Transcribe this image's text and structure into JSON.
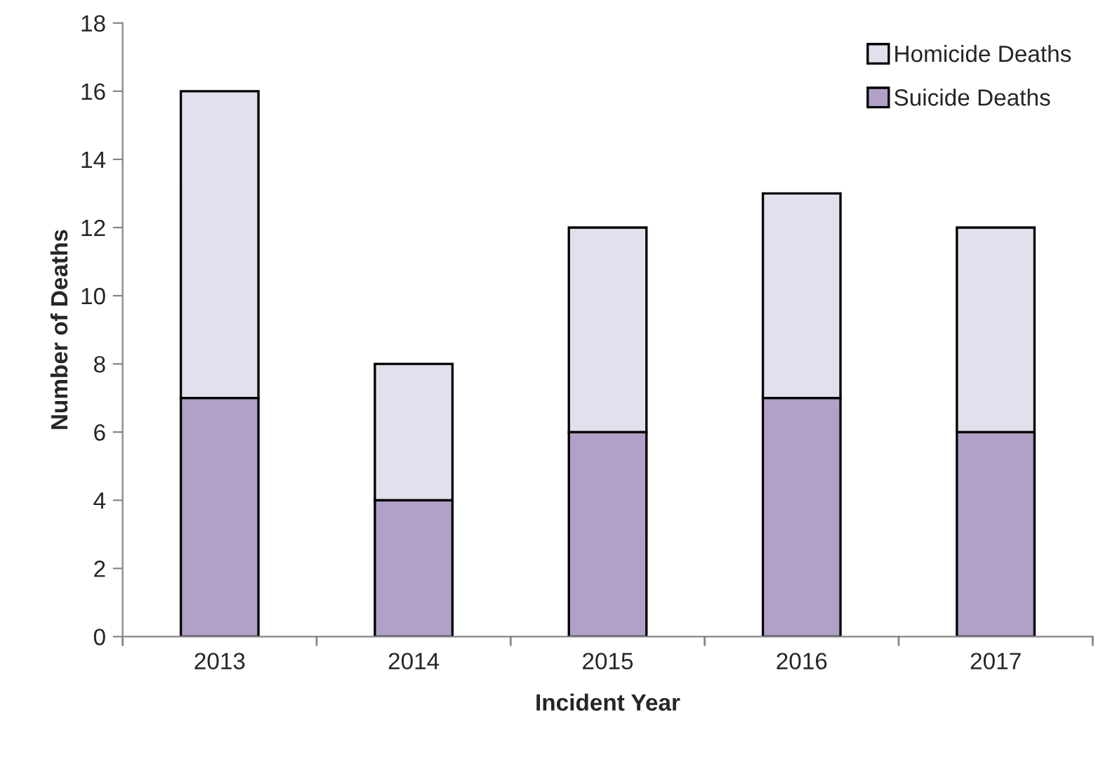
{
  "chart_data": {
    "type": "bar",
    "stacked": true,
    "xlabel": "Incident Year",
    "ylabel": "Number of Deaths",
    "categories": [
      "2013",
      "2014",
      "2015",
      "2016",
      "2017"
    ],
    "series": [
      {
        "name": "Suicide Deaths",
        "color": "#b1a0c7",
        "values": [
          7,
          4,
          6,
          7,
          6
        ]
      },
      {
        "name": "Homicide Deaths",
        "color": "#e4dfec",
        "values": [
          9,
          4,
          6,
          6,
          6
        ]
      }
    ],
    "ylim": [
      0,
      18
    ],
    "yticks": [
      0,
      2,
      4,
      6,
      8,
      10,
      12,
      14,
      16,
      18
    ],
    "grid": false,
    "legend": "top right"
  }
}
